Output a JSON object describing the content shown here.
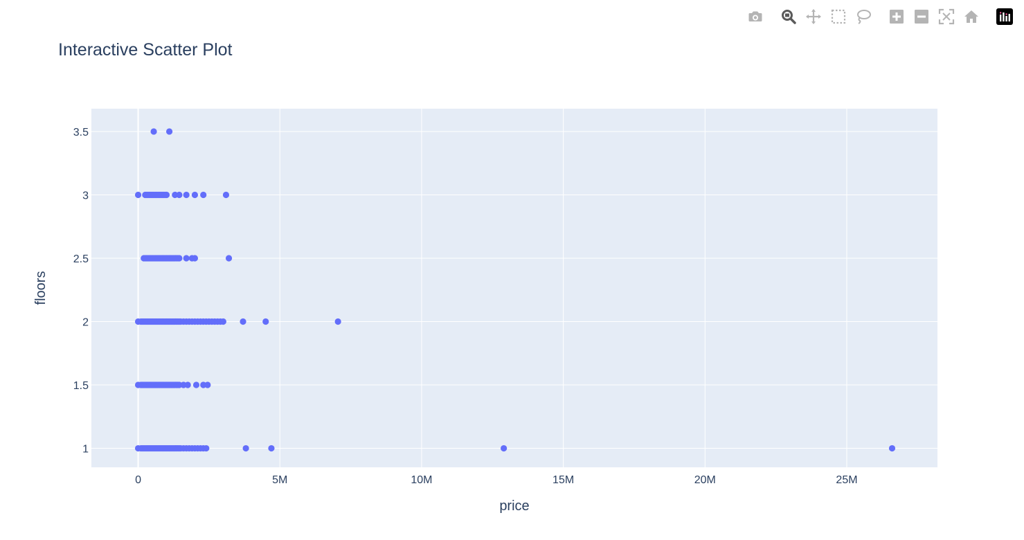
{
  "title": "Interactive Scatter Plot",
  "modebar": {
    "buttons": [
      {
        "icon": "camera-icon",
        "name": "download-plot-button"
      },
      {
        "icon": "zoom-icon",
        "name": "zoom-button"
      },
      {
        "icon": "pan-icon",
        "name": "pan-button"
      },
      {
        "icon": "box-select-icon",
        "name": "box-select-button"
      },
      {
        "icon": "lasso-select-icon",
        "name": "lasso-select-button"
      },
      {
        "icon": "zoom-in-icon",
        "name": "zoom-in-button"
      },
      {
        "icon": "zoom-out-icon",
        "name": "zoom-out-button"
      },
      {
        "icon": "autoscale-icon",
        "name": "autoscale-button"
      },
      {
        "icon": "reset-axes-icon",
        "name": "reset-axes-button"
      },
      {
        "icon": "plotly-logo-icon",
        "name": "plotly-logo"
      }
    ]
  },
  "colors": {
    "plot_bg": "#e5ecf6",
    "grid": "#ffffff",
    "marker": "#636efa",
    "text": "#2a3f5f",
    "icon": "#b4b4b4",
    "icon_active": "#5a5a5a"
  },
  "chart_data": {
    "type": "scatter",
    "title": "Interactive Scatter Plot",
    "xlabel": "price",
    "ylabel": "floors",
    "xlim": [
      -1650000,
      28200000
    ],
    "ylim": [
      0.85,
      3.68
    ],
    "xticks": [
      0,
      5000000,
      10000000,
      15000000,
      20000000,
      25000000
    ],
    "xtick_labels": [
      "0",
      "5M",
      "10M",
      "15M",
      "20M",
      "25M"
    ],
    "yticks": [
      1,
      1.5,
      2,
      2.5,
      3,
      3.5
    ],
    "ytick_labels": [
      "1",
      "1.5",
      "2",
      "2.5",
      "3",
      "3.5"
    ],
    "grid": true,
    "series": [
      {
        "marker": "circle",
        "x": [
          0,
          100000,
          150000,
          200000,
          250000,
          300000,
          350000,
          400000,
          450000,
          500000,
          550000,
          600000,
          650000,
          700000,
          750000,
          800000,
          850000,
          900000,
          950000,
          1000000,
          1050000,
          1100000,
          1150000,
          1200000,
          1250000,
          1300000,
          1350000,
          1400000,
          1450000,
          1500000,
          1600000,
          1700000,
          1800000,
          1900000,
          2000000,
          2100000,
          2200000,
          2300000,
          2400000,
          3800000,
          4700000,
          12900000,
          26600000,
          0,
          100000,
          150000,
          200000,
          250000,
          300000,
          350000,
          400000,
          450000,
          500000,
          550000,
          600000,
          650000,
          700000,
          750000,
          800000,
          850000,
          900000,
          950000,
          1000000,
          1050000,
          1100000,
          1150000,
          1200000,
          1250000,
          1300000,
          1350000,
          1400000,
          1450000,
          1600000,
          1750000,
          2050000,
          2300000,
          2450000,
          0,
          100000,
          150000,
          200000,
          250000,
          300000,
          350000,
          400000,
          450000,
          500000,
          550000,
          600000,
          650000,
          700000,
          750000,
          800000,
          850000,
          900000,
          950000,
          1000000,
          1050000,
          1100000,
          1150000,
          1200000,
          1250000,
          1300000,
          1350000,
          1400000,
          1450000,
          1500000,
          1600000,
          1700000,
          1800000,
          1900000,
          2000000,
          2100000,
          2200000,
          2300000,
          2400000,
          2500000,
          2600000,
          2700000,
          2800000,
          2900000,
          3000000,
          3700000,
          4500000,
          7050000,
          200000,
          250000,
          300000,
          350000,
          400000,
          450000,
          500000,
          550000,
          600000,
          650000,
          700000,
          750000,
          800000,
          850000,
          900000,
          950000,
          1000000,
          1050000,
          1100000,
          1150000,
          1200000,
          1250000,
          1300000,
          1350000,
          1400000,
          1450000,
          1700000,
          1900000,
          2000000,
          3200000,
          0,
          250000,
          300000,
          350000,
          400000,
          450000,
          500000,
          550000,
          600000,
          650000,
          700000,
          750000,
          800000,
          850000,
          900000,
          950000,
          1000000,
          1300000,
          1450000,
          1700000,
          2000000,
          2300000,
          3100000,
          550000,
          1100000
        ],
        "y": [
          1,
          1,
          1,
          1,
          1,
          1,
          1,
          1,
          1,
          1,
          1,
          1,
          1,
          1,
          1,
          1,
          1,
          1,
          1,
          1,
          1,
          1,
          1,
          1,
          1,
          1,
          1,
          1,
          1,
          1,
          1,
          1,
          1,
          1,
          1,
          1,
          1,
          1,
          1,
          1,
          1,
          1,
          1,
          1.5,
          1.5,
          1.5,
          1.5,
          1.5,
          1.5,
          1.5,
          1.5,
          1.5,
          1.5,
          1.5,
          1.5,
          1.5,
          1.5,
          1.5,
          1.5,
          1.5,
          1.5,
          1.5,
          1.5,
          1.5,
          1.5,
          1.5,
          1.5,
          1.5,
          1.5,
          1.5,
          1.5,
          1.5,
          1.5,
          1.5,
          1.5,
          1.5,
          1.5,
          2,
          2,
          2,
          2,
          2,
          2,
          2,
          2,
          2,
          2,
          2,
          2,
          2,
          2,
          2,
          2,
          2,
          2,
          2,
          2,
          2,
          2,
          2,
          2,
          2,
          2,
          2,
          2,
          2,
          2,
          2,
          2,
          2,
          2,
          2,
          2,
          2,
          2,
          2,
          2,
          2,
          2,
          2,
          2,
          2,
          2,
          2,
          2,
          2.5,
          2.5,
          2.5,
          2.5,
          2.5,
          2.5,
          2.5,
          2.5,
          2.5,
          2.5,
          2.5,
          2.5,
          2.5,
          2.5,
          2.5,
          2.5,
          2.5,
          2.5,
          2.5,
          2.5,
          2.5,
          2.5,
          2.5,
          2.5,
          2.5,
          2.5,
          2.5,
          2.5,
          2.5,
          2.5,
          3,
          3,
          3,
          3,
          3,
          3,
          3,
          3,
          3,
          3,
          3,
          3,
          3,
          3,
          3,
          3,
          3,
          3,
          3,
          3,
          3,
          3,
          3,
          3.5,
          3.5
        ]
      }
    ]
  }
}
